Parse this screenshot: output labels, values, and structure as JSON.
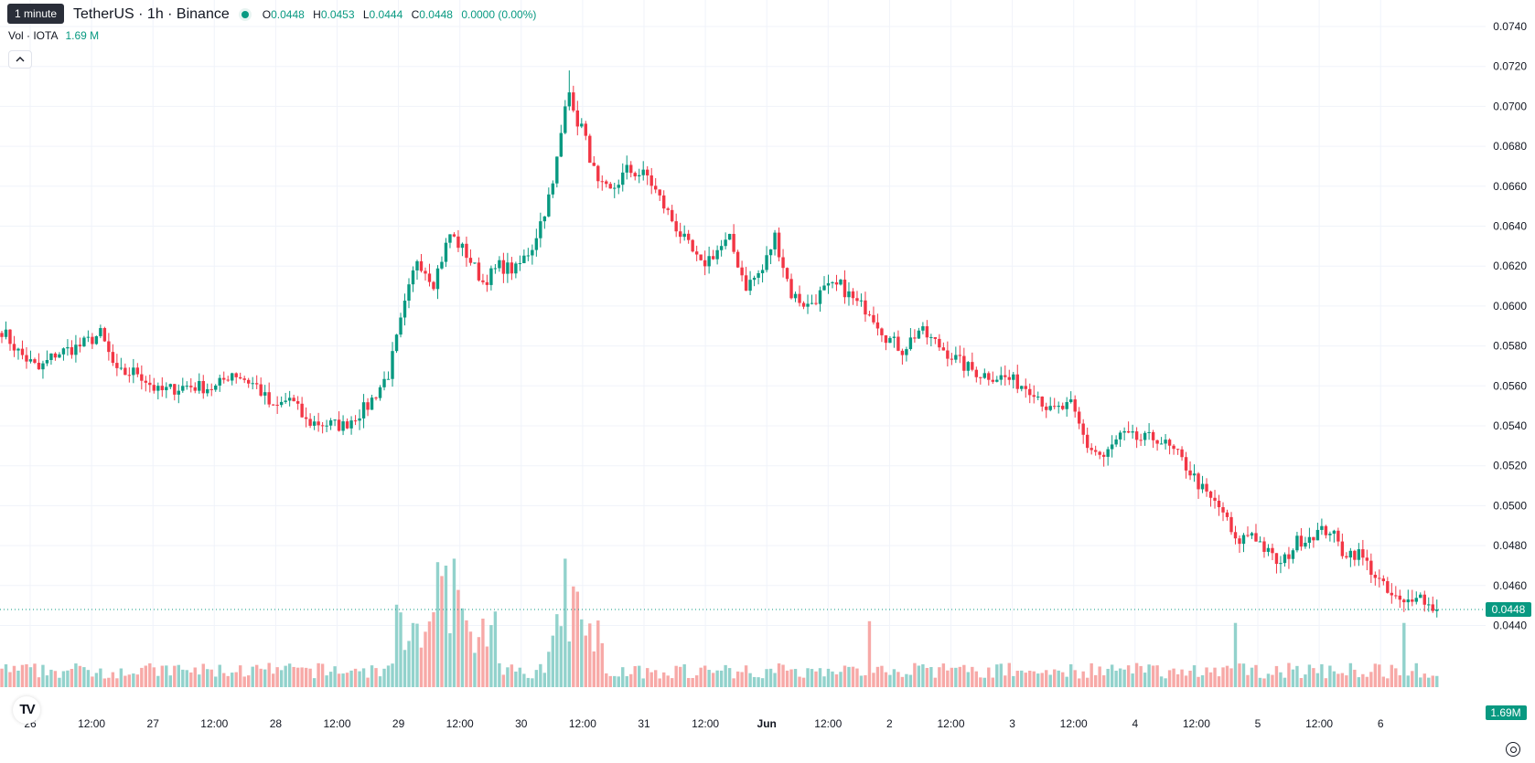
{
  "header": {
    "tooltip": "1 minute",
    "symbol_title": "TetherUS · 1h · Binance",
    "ohlc": {
      "o_label": "O",
      "o": "0.0448",
      "h_label": "H",
      "h": "0.0453",
      "l_label": "L",
      "l": "0.0444",
      "c_label": "C",
      "c": "0.0448",
      "change": "0.0000 (0.00%)"
    },
    "volume_label": "Vol · IOTA",
    "volume_value": "1.69 M",
    "collapse_icon": "chevron-up-icon"
  },
  "colors": {
    "up": "#089981",
    "down": "#f23645",
    "vol_up": "#92d2cc",
    "vol_down": "#f7a9a7",
    "grid": "#f0f3fa",
    "last_price": "#089981"
  },
  "price_axis": {
    "ticks": [
      "0.0740",
      "0.0720",
      "0.0700",
      "0.0680",
      "0.0660",
      "0.0640",
      "0.0620",
      "0.0600",
      "0.0580",
      "0.0560",
      "0.0540",
      "0.0520",
      "0.0500",
      "0.0480",
      "0.0460",
      "0.0440"
    ],
    "last_price_label": "0.0448",
    "volume_label": "1.69M"
  },
  "time_axis": {
    "labels": [
      "26",
      "12:00",
      "27",
      "12:00",
      "28",
      "12:00",
      "29",
      "12:00",
      "30",
      "12:00",
      "31",
      "12:00",
      "Jun",
      "12:00",
      "2",
      "12:00",
      "3",
      "12:00",
      "4",
      "12:00",
      "5",
      "12:00",
      "6"
    ]
  },
  "chart_data": {
    "type": "candlestick",
    "interval": "1h",
    "y_range": [
      0.0433,
      0.0745
    ],
    "last_price": 0.0448,
    "anchor_closes": [
      [
        0,
        0.0588
      ],
      [
        4,
        0.0577
      ],
      [
        9,
        0.0568
      ],
      [
        13,
        0.0576
      ],
      [
        19,
        0.058
      ],
      [
        24,
        0.0586
      ],
      [
        28,
        0.0566
      ],
      [
        33,
        0.0567
      ],
      [
        38,
        0.0557
      ],
      [
        45,
        0.056
      ],
      [
        52,
        0.0559
      ],
      [
        56,
        0.0567
      ],
      [
        62,
        0.056
      ],
      [
        66,
        0.0548
      ],
      [
        70,
        0.0554
      ],
      [
        74,
        0.0542
      ],
      [
        83,
        0.054
      ],
      [
        89,
        0.055
      ],
      [
        94,
        0.0566
      ],
      [
        98,
        0.06
      ],
      [
        101,
        0.0624
      ],
      [
        105,
        0.0612
      ],
      [
        109,
        0.0636
      ],
      [
        113,
        0.0626
      ],
      [
        117,
        0.0612
      ],
      [
        121,
        0.062
      ],
      [
        125,
        0.0618
      ],
      [
        129,
        0.063
      ],
      [
        134,
        0.066
      ],
      [
        137,
        0.07
      ],
      [
        141,
        0.069
      ],
      [
        145,
        0.066
      ],
      [
        148,
        0.0657
      ],
      [
        152,
        0.0668
      ],
      [
        157,
        0.0665
      ],
      [
        161,
        0.065
      ],
      [
        165,
        0.0636
      ],
      [
        170,
        0.062
      ],
      [
        174,
        0.0628
      ],
      [
        177,
        0.0633
      ],
      [
        181,
        0.061
      ],
      [
        185,
        0.0618
      ],
      [
        188,
        0.0635
      ],
      [
        192,
        0.0606
      ],
      [
        196,
        0.06
      ],
      [
        200,
        0.0608
      ],
      [
        204,
        0.061
      ],
      [
        208,
        0.0601
      ],
      [
        211,
        0.0598
      ],
      [
        215,
        0.0585
      ],
      [
        219,
        0.0578
      ],
      [
        223,
        0.0588
      ],
      [
        228,
        0.058
      ],
      [
        234,
        0.057
      ],
      [
        238,
        0.0566
      ],
      [
        244,
        0.0564
      ],
      [
        251,
        0.0558
      ],
      [
        255,
        0.0547
      ],
      [
        260,
        0.055
      ],
      [
        264,
        0.053
      ],
      [
        268,
        0.0524
      ],
      [
        272,
        0.0535
      ],
      [
        277,
        0.0533
      ],
      [
        281,
        0.0534
      ],
      [
        286,
        0.0525
      ],
      [
        289,
        0.0517
      ],
      [
        293,
        0.0505
      ],
      [
        297,
        0.0497
      ],
      [
        300,
        0.0481
      ],
      [
        304,
        0.0487
      ],
      [
        308,
        0.0476
      ],
      [
        311,
        0.047
      ],
      [
        315,
        0.0482
      ],
      [
        319,
        0.0486
      ],
      [
        323,
        0.0488
      ],
      [
        326,
        0.0477
      ],
      [
        330,
        0.0476
      ],
      [
        333,
        0.0468
      ],
      [
        337,
        0.0456
      ],
      [
        341,
        0.045
      ],
      [
        344,
        0.0457
      ],
      [
        347,
        0.045
      ],
      [
        349,
        0.0448
      ]
    ],
    "key_extremes": {
      "high": 0.0718,
      "low": 0.0444
    },
    "volume_peaks": [
      [
        106,
        "up",
        0.72
      ],
      [
        107,
        "down",
        0.64
      ],
      [
        108,
        "up",
        0.7
      ],
      [
        110,
        "up",
        0.74
      ],
      [
        111,
        "down",
        0.56
      ],
      [
        137,
        "up",
        0.74
      ],
      [
        139,
        "down",
        0.58
      ],
      [
        140,
        "down",
        0.55
      ],
      [
        211,
        "down",
        0.38
      ],
      [
        300,
        "up",
        0.37
      ],
      [
        341,
        "up",
        0.37
      ]
    ],
    "volume_last": "1.69M"
  }
}
